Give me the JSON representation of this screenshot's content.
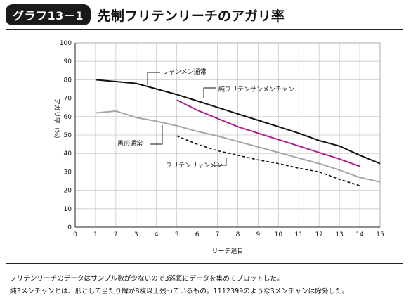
{
  "header": {
    "badge": "グラフ13－1",
    "title": "先制フリテンリーチのアガリ率"
  },
  "chart_data": {
    "type": "line",
    "xlabel": "リーチ巡目",
    "ylabel": "アガリ率（%）",
    "xlim": [
      0,
      15
    ],
    "ylim": [
      0,
      100
    ],
    "x_ticks": [
      0,
      1,
      2,
      3,
      4,
      5,
      6,
      7,
      8,
      9,
      10,
      11,
      12,
      13,
      14,
      15
    ],
    "y_ticks": [
      0,
      10,
      20,
      30,
      40,
      50,
      60,
      70,
      80,
      90,
      100
    ],
    "grid": true,
    "series": [
      {
        "name": "リャンメン通常",
        "color": "#111111",
        "style": "solid",
        "x": [
          1,
          2,
          3,
          4,
          5,
          6,
          7,
          8,
          9,
          10,
          11,
          12,
          13,
          14,
          15
        ],
        "y": [
          80,
          79,
          78,
          75,
          72,
          68.5,
          65,
          61.5,
          58,
          54.5,
          51,
          47,
          44,
          39,
          34.5
        ]
      },
      {
        "name": "純フリテンサンメンチャン",
        "color": "#b0208c",
        "style": "solid",
        "x": [
          5,
          6,
          7,
          8,
          9,
          10,
          11,
          12,
          13,
          14
        ],
        "y": [
          69,
          63.5,
          59,
          54.5,
          51,
          47.5,
          44,
          40.5,
          37,
          33
        ]
      },
      {
        "name": "愚形通常",
        "color": "#a6a6a6",
        "style": "solid",
        "x": [
          1,
          2,
          3,
          4,
          5,
          6,
          7,
          8,
          9,
          10,
          11,
          12,
          13,
          14,
          15
        ],
        "y": [
          62,
          63,
          59.5,
          57.5,
          55,
          52,
          49.5,
          46.5,
          43.5,
          40.5,
          37.5,
          34.5,
          31,
          27,
          24.5
        ]
      },
      {
        "name": "フリテンリャンメン",
        "color": "#111111",
        "style": "dashed",
        "x": [
          5,
          6,
          7,
          8,
          9,
          10,
          11,
          12,
          13,
          14
        ],
        "y": [
          49.5,
          45,
          41.5,
          39,
          36.5,
          34.5,
          32,
          30,
          26,
          22.5
        ]
      }
    ]
  },
  "notes": [
    "フリテンリーチのデータはサンプル数が少ないので3巡毎にデータを集めてプロットした。",
    "純3メンチャンとは、形として当たり牌が8枚以上残っているもの。1112399のような3メンチャンは除外した。"
  ]
}
